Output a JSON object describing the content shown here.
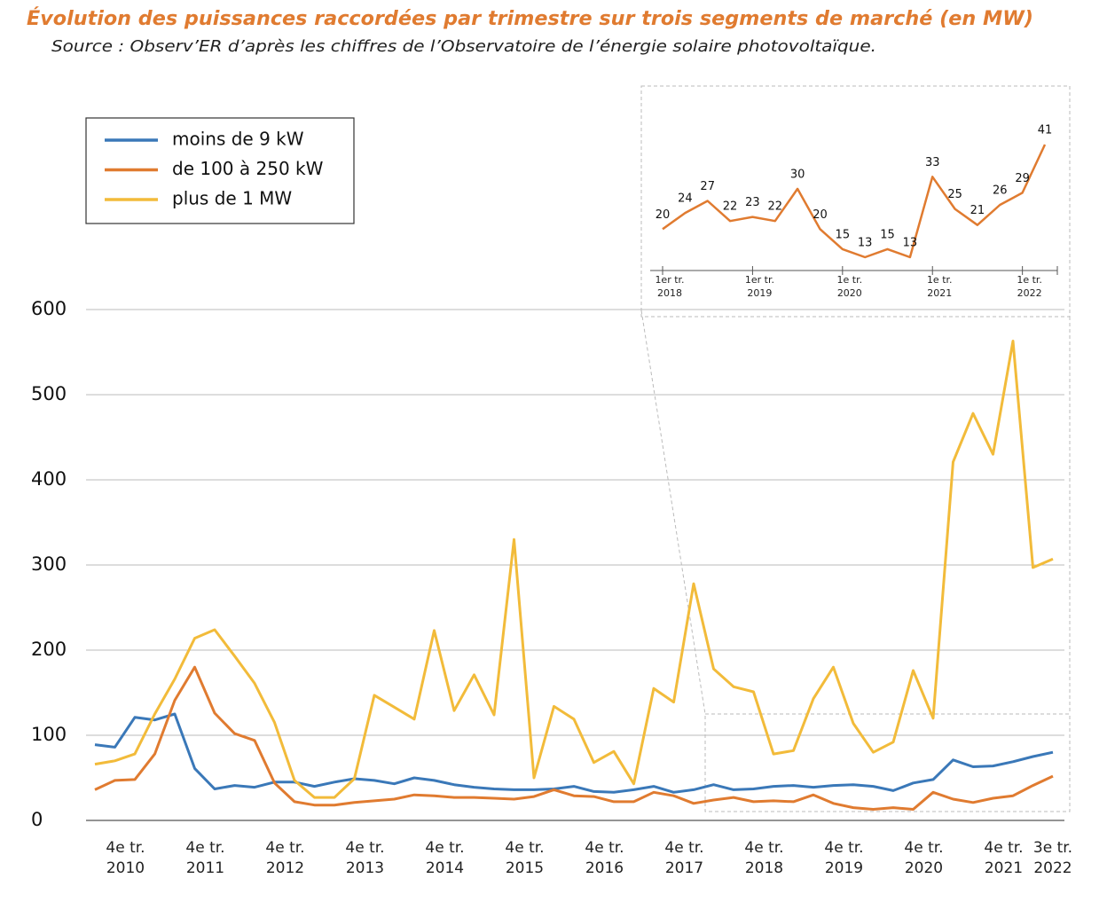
{
  "chart_data": [
    {
      "type": "line",
      "title": "Évolution des puissances raccordées par trimestre sur trois segments de marché (en MW)",
      "subtitle": "Source : Observ’ER d’après les chiffres de l’Observatoire de l’énergie solaire photovoltaïque.",
      "categories": [
        null,
        "4e tr. 2010",
        null,
        null,
        null,
        "4e tr. 2011",
        null,
        null,
        null,
        "4e tr. 2012",
        null,
        null,
        null,
        "4e tr. 2013",
        null,
        null,
        null,
        "4e tr. 2014",
        null,
        null,
        null,
        "4e tr. 2015",
        null,
        null,
        null,
        "4e tr. 2016",
        null,
        null,
        null,
        "4e tr. 2017",
        null,
        null,
        null,
        "4e tr. 2018",
        null,
        null,
        null,
        "4e tr. 2019",
        null,
        null,
        null,
        "4e tr. 2020",
        null,
        null,
        null,
        "4e tr. 2021",
        null,
        null,
        "3e tr. 2022"
      ],
      "series": [
        {
          "name": "moins de 9 kW",
          "color": "#3a78b8",
          "values": [
            89,
            86,
            121,
            118,
            125,
            61,
            37,
            41,
            39,
            45,
            45,
            40,
            45,
            49,
            47,
            43,
            50,
            47,
            42,
            39,
            37,
            36,
            36,
            37,
            40,
            34,
            33,
            36,
            40,
            33,
            36,
            42,
            36,
            37,
            40,
            41,
            39,
            41,
            42,
            40,
            35,
            44,
            48,
            71,
            63,
            64,
            69,
            75,
            80
          ]
        },
        {
          "name": "de 100 à 250 kW",
          "color": "#e07b30",
          "values": [
            36,
            47,
            48,
            78,
            141,
            180,
            126,
            102,
            94,
            44,
            22,
            18,
            18,
            21,
            23,
            25,
            30,
            29,
            27,
            27,
            26,
            25,
            28,
            36,
            29,
            28,
            22,
            22,
            33,
            29,
            20,
            24,
            27,
            22,
            23,
            22,
            30,
            20,
            15,
            13,
            15,
            13,
            33,
            25,
            21,
            26,
            29,
            41,
            52
          ]
        },
        {
          "name": "plus de 1 MW",
          "color": "#f2bb3a",
          "values": [
            66,
            70,
            78,
            125,
            166,
            214,
            224,
            193,
            161,
            115,
            47,
            27,
            27,
            49,
            147,
            133,
            119,
            223,
            129,
            171,
            124,
            330,
            50,
            134,
            119,
            68,
            81,
            43,
            155,
            139,
            278,
            178,
            157,
            151,
            78,
            82,
            143,
            180,
            114,
            80,
            92,
            176,
            120,
            421,
            478,
            430,
            563,
            297,
            307
          ]
        }
      ],
      "ylim": [
        0,
        600
      ],
      "yticks": [
        0,
        100,
        200,
        300,
        400,
        500,
        600
      ],
      "grid": true
    },
    {
      "type": "line",
      "categories": [
        "1er tr. 2018",
        null,
        null,
        null,
        "1er tr. 2019",
        null,
        null,
        null,
        "1e tr. 2020",
        null,
        null,
        null,
        "1e tr. 2021",
        null,
        null,
        null,
        "1e tr. 2022",
        null
      ],
      "series": [
        {
          "name": "de 100 à 250 kW",
          "color": "#e07b30",
          "values": [
            20,
            24,
            27,
            22,
            23,
            22,
            30,
            20,
            15,
            13,
            15,
            13,
            33,
            25,
            21,
            26,
            29,
            41
          ]
        }
      ]
    }
  ]
}
